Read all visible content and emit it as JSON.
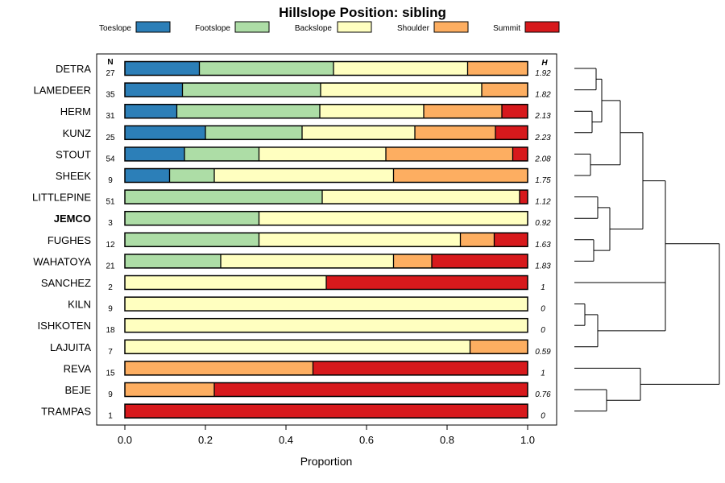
{
  "chart_data": {
    "type": "bar",
    "orientation": "horizontal-stacked-proportion",
    "title": "Hillslope Position: sibling",
    "xlabel": "Proportion",
    "xlim": [
      0,
      1
    ],
    "xticks": [
      "0.0",
      "0.2",
      "0.4",
      "0.6",
      "0.8",
      "1.0"
    ],
    "n_header": "N",
    "h_header": "H",
    "series": [
      {
        "name": "Toeslope",
        "color": "#2C7FB8"
      },
      {
        "name": "Footslope",
        "color": "#ADDDA6"
      },
      {
        "name": "Backslope",
        "color": "#FFFFC0"
      },
      {
        "name": "Shoulder",
        "color": "#FDAE61"
      },
      {
        "name": "Summit",
        "color": "#D7191C"
      }
    ],
    "rows": [
      {
        "site": "DETRA",
        "n": "27",
        "h": "1.92",
        "bold": false,
        "values": [
          0.185,
          0.333,
          0.333,
          0.149,
          0.0
        ]
      },
      {
        "site": "LAMEDEER",
        "n": "35",
        "h": "1.82",
        "bold": false,
        "values": [
          0.143,
          0.343,
          0.4,
          0.114,
          0.0
        ]
      },
      {
        "site": "HERM",
        "n": "31",
        "h": "2.13",
        "bold": false,
        "values": [
          0.129,
          0.355,
          0.258,
          0.194,
          0.064
        ]
      },
      {
        "site": "KUNZ",
        "n": "25",
        "h": "2.23",
        "bold": false,
        "values": [
          0.2,
          0.24,
          0.28,
          0.2,
          0.08
        ]
      },
      {
        "site": "STOUT",
        "n": "54",
        "h": "2.08",
        "bold": false,
        "values": [
          0.148,
          0.185,
          0.315,
          0.315,
          0.037
        ]
      },
      {
        "site": "SHEEK",
        "n": "9",
        "h": "1.75",
        "bold": false,
        "values": [
          0.111,
          0.111,
          0.445,
          0.333,
          0.0
        ]
      },
      {
        "site": "LITTLEPINE",
        "n": "51",
        "h": "1.12",
        "bold": false,
        "values": [
          0.0,
          0.49,
          0.49,
          0.0,
          0.02
        ]
      },
      {
        "site": "JEMCO",
        "n": "3",
        "h": "0.92",
        "bold": true,
        "values": [
          0.0,
          0.333,
          0.667,
          0.0,
          0.0
        ]
      },
      {
        "site": "FUGHES",
        "n": "12",
        "h": "1.63",
        "bold": false,
        "values": [
          0.0,
          0.333,
          0.5,
          0.084,
          0.083
        ]
      },
      {
        "site": "WAHATOYA",
        "n": "21",
        "h": "1.83",
        "bold": false,
        "values": [
          0.0,
          0.238,
          0.429,
          0.095,
          0.238
        ]
      },
      {
        "site": "SANCHEZ",
        "n": "2",
        "h": "1",
        "bold": false,
        "values": [
          0.0,
          0.0,
          0.5,
          0.0,
          0.5
        ]
      },
      {
        "site": "KILN",
        "n": "9",
        "h": "0",
        "bold": false,
        "values": [
          0.0,
          0.0,
          1.0,
          0.0,
          0.0
        ]
      },
      {
        "site": "ISHKOTEN",
        "n": "18",
        "h": "0",
        "bold": false,
        "values": [
          0.0,
          0.0,
          1.0,
          0.0,
          0.0
        ]
      },
      {
        "site": "LAJUITA",
        "n": "7",
        "h": "0.59",
        "bold": false,
        "values": [
          0.0,
          0.0,
          0.857,
          0.143,
          0.0
        ]
      },
      {
        "site": "REVA",
        "n": "15",
        "h": "1",
        "bold": false,
        "values": [
          0.0,
          0.0,
          0.0,
          0.467,
          0.533
        ]
      },
      {
        "site": "BEJE",
        "n": "9",
        "h": "0.76",
        "bold": false,
        "values": [
          0.0,
          0.0,
          0.0,
          0.222,
          0.778
        ]
      },
      {
        "site": "TRAMPAS",
        "n": "1",
        "h": "0",
        "bold": false,
        "values": [
          0.0,
          0.0,
          0.0,
          0.0,
          1.0
        ]
      }
    ]
  }
}
